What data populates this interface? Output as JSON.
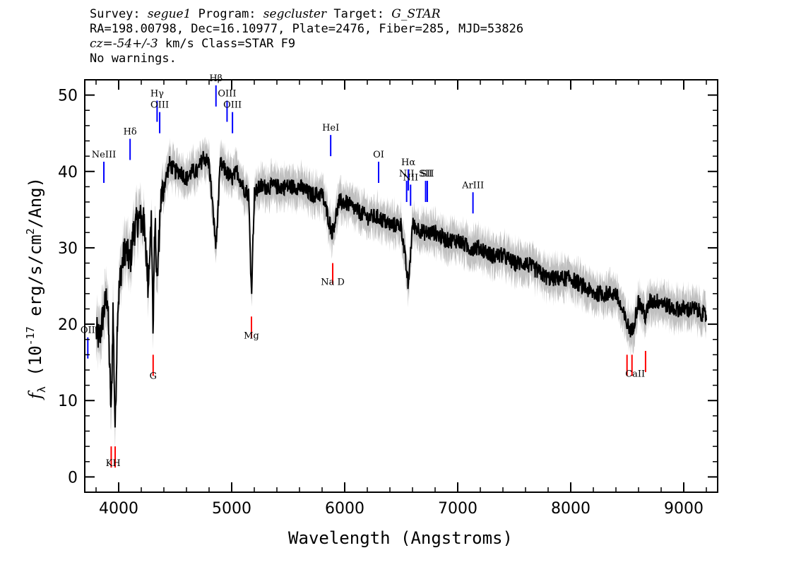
{
  "header": {
    "survey_label": "Survey:",
    "survey": "segue1",
    "program_label": "Program:",
    "program": "segcluster",
    "target_label": "Target:",
    "target": "G_STAR",
    "line2": "RA=198.00798, Dec=16.10977, Plate=2476, Fiber=285, MJD=53826",
    "cz_label": "cz=",
    "cz": "-54+/-3",
    "cz_rest": " km/s Class=STAR F9",
    "line4": "No warnings."
  },
  "chart_data": {
    "type": "line",
    "xlabel": "Wavelength (Angstroms)",
    "ylabel": "f_λ (10^-17 erg/s/cm²/Ang)",
    "ylabel_f": "f",
    "ylabel_sub": "λ",
    "ylabel_a": " (10",
    "ylabel_exp": "-17",
    "ylabel_b": " erg/s/cm",
    "ylabel_exp2": "2",
    "ylabel_c": "/Ang)",
    "xlim": [
      3700,
      9300
    ],
    "ylim": [
      -2,
      52
    ],
    "x_ticks": [
      4000,
      5000,
      6000,
      7000,
      8000,
      9000
    ],
    "x_tick_labels": [
      "4000",
      "5000",
      "6000",
      "7000",
      "8000",
      "9000"
    ],
    "y_ticks": [
      0,
      10,
      20,
      30,
      40,
      50
    ],
    "y_tick_labels": [
      "0",
      "10",
      "20",
      "30",
      "40",
      "50"
    ],
    "grid": false,
    "series": [
      {
        "name": "",
        "color": "#000000",
        "error_color": "#c0c0c0",
        "x": [
          3800,
          3830,
          3860,
          3900,
          3934,
          3950,
          3969,
          3990,
          4020,
          4060,
          4101,
          4130,
          4180,
          4230,
          4260,
          4290,
          4305,
          4320,
          4340,
          4370,
          4400,
          4450,
          4500,
          4550,
          4600,
          4650,
          4700,
          4750,
          4800,
          4861,
          4900,
          4950,
          5000,
          5050,
          5100,
          5150,
          5175,
          5200,
          5250,
          5300,
          5400,
          5500,
          5600,
          5700,
          5800,
          5890,
          5950,
          6000,
          6100,
          6200,
          6300,
          6400,
          6500,
          6563,
          6600,
          6700,
          6800,
          6900,
          7000,
          7100,
          7200,
          7300,
          7400,
          7500,
          7600,
          7700,
          7800,
          7900,
          8000,
          8100,
          8200,
          8300,
          8400,
          8498,
          8542,
          8600,
          8662,
          8700,
          8800,
          8900,
          9000,
          9100,
          9200
        ],
        "y": [
          19,
          18,
          21,
          24,
          8,
          22,
          6,
          22,
          27,
          30,
          28,
          32,
          34,
          33,
          25,
          34,
          18,
          34,
          25,
          36,
          38,
          41,
          40,
          40,
          39,
          40,
          40,
          42,
          41,
          30,
          41,
          40,
          39,
          40,
          38,
          37,
          24,
          37,
          38,
          38,
          38,
          38,
          38,
          37,
          37,
          32,
          36,
          36,
          35,
          34,
          34,
          33,
          33,
          25,
          33,
          32,
          32,
          31,
          31,
          30,
          30,
          29,
          29,
          28,
          28,
          27,
          26,
          26,
          26,
          25,
          24,
          24,
          24,
          20,
          19,
          23,
          21,
          23,
          23,
          22,
          22,
          22,
          21
        ]
      }
    ],
    "emission_lines": [
      {
        "name": "OII",
        "wavelength": 3727,
        "y": 15.5
      },
      {
        "name": "NeIII",
        "wavelength": 3869,
        "y": 38.5
      },
      {
        "name": "Hδ",
        "wavelength": 4101,
        "y": 41.5
      },
      {
        "name": "Hγ",
        "wavelength": 4340,
        "y": 46.5
      },
      {
        "name": "OIII",
        "wavelength": 4363,
        "y": 45
      },
      {
        "name": "Hβ",
        "wavelength": 4861,
        "y": 48.5
      },
      {
        "name": "OIII",
        "wavelength": 4959,
        "y": 46.5
      },
      {
        "name": "OIII",
        "wavelength": 5007,
        "y": 45
      },
      {
        "name": "HeI",
        "wavelength": 5876,
        "y": 42
      },
      {
        "name": "OI",
        "wavelength": 6300,
        "y": 38.5
      },
      {
        "name": "NII",
        "wavelength": 6548,
        "y": 36
      },
      {
        "name": "Hα",
        "wavelength": 6563,
        "y": 37.5
      },
      {
        "name": "NII",
        "wavelength": 6583,
        "y": 35.5
      },
      {
        "name": "SII",
        "wavelength": 6716,
        "y": 36
      },
      {
        "name": "SII",
        "wavelength": 6731,
        "y": 36
      },
      {
        "name": "ArIII",
        "wavelength": 7135,
        "y": 34.5
      }
    ],
    "absorption_lines": [
      {
        "name": "K",
        "wavelength": 3934,
        "y": 4
      },
      {
        "name": "H",
        "wavelength": 3969,
        "y": 4
      },
      {
        "name": "G",
        "wavelength": 4305,
        "y": 16
      },
      {
        "name": "Mg",
        "wavelength": 5175,
        "y": 21
      },
      {
        "name": "Na D",
        "wavelength": 5894,
        "y": 28
      },
      {
        "name": "CaII",
        "wavelength": 8498,
        "y": 16
      },
      {
        "name": "CaII",
        "wavelength": 8542,
        "y": 16
      },
      {
        "name": "CaII",
        "wavelength": 8662,
        "y": 16.5
      }
    ],
    "absorption_label_groups": [
      {
        "text": "KH",
        "wavelength": 3951,
        "y": 1.8
      },
      {
        "text": "G",
        "wavelength": 4305,
        "y": 13.2
      },
      {
        "text": "Mg",
        "wavelength": 5175,
        "y": 18.5
      },
      {
        "text": "Na D",
        "wavelength": 5894,
        "y": 25.5
      },
      {
        "text": "CaII",
        "wavelength": 8570,
        "y": 13.5
      }
    ],
    "emission_color": "#0000ff",
    "absorption_color": "#ff0000"
  }
}
